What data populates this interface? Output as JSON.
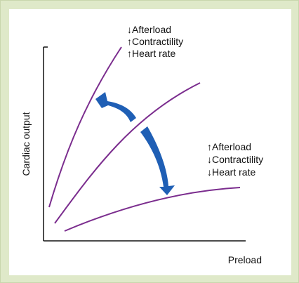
{
  "axes": {
    "x_label": "Preload",
    "y_label": "Cardiac output"
  },
  "annotations": {
    "upper": [
      "↓Afterload",
      "↑Contractility",
      "↑Heart rate"
    ],
    "lower": [
      "↑Afterload",
      "↓Contractility",
      "↓Heart rate"
    ]
  },
  "colors": {
    "curve": "#7b2d8e",
    "arrow": "#1f5fb5",
    "frame": "#dfe9c9",
    "axis": "#111111"
  }
}
